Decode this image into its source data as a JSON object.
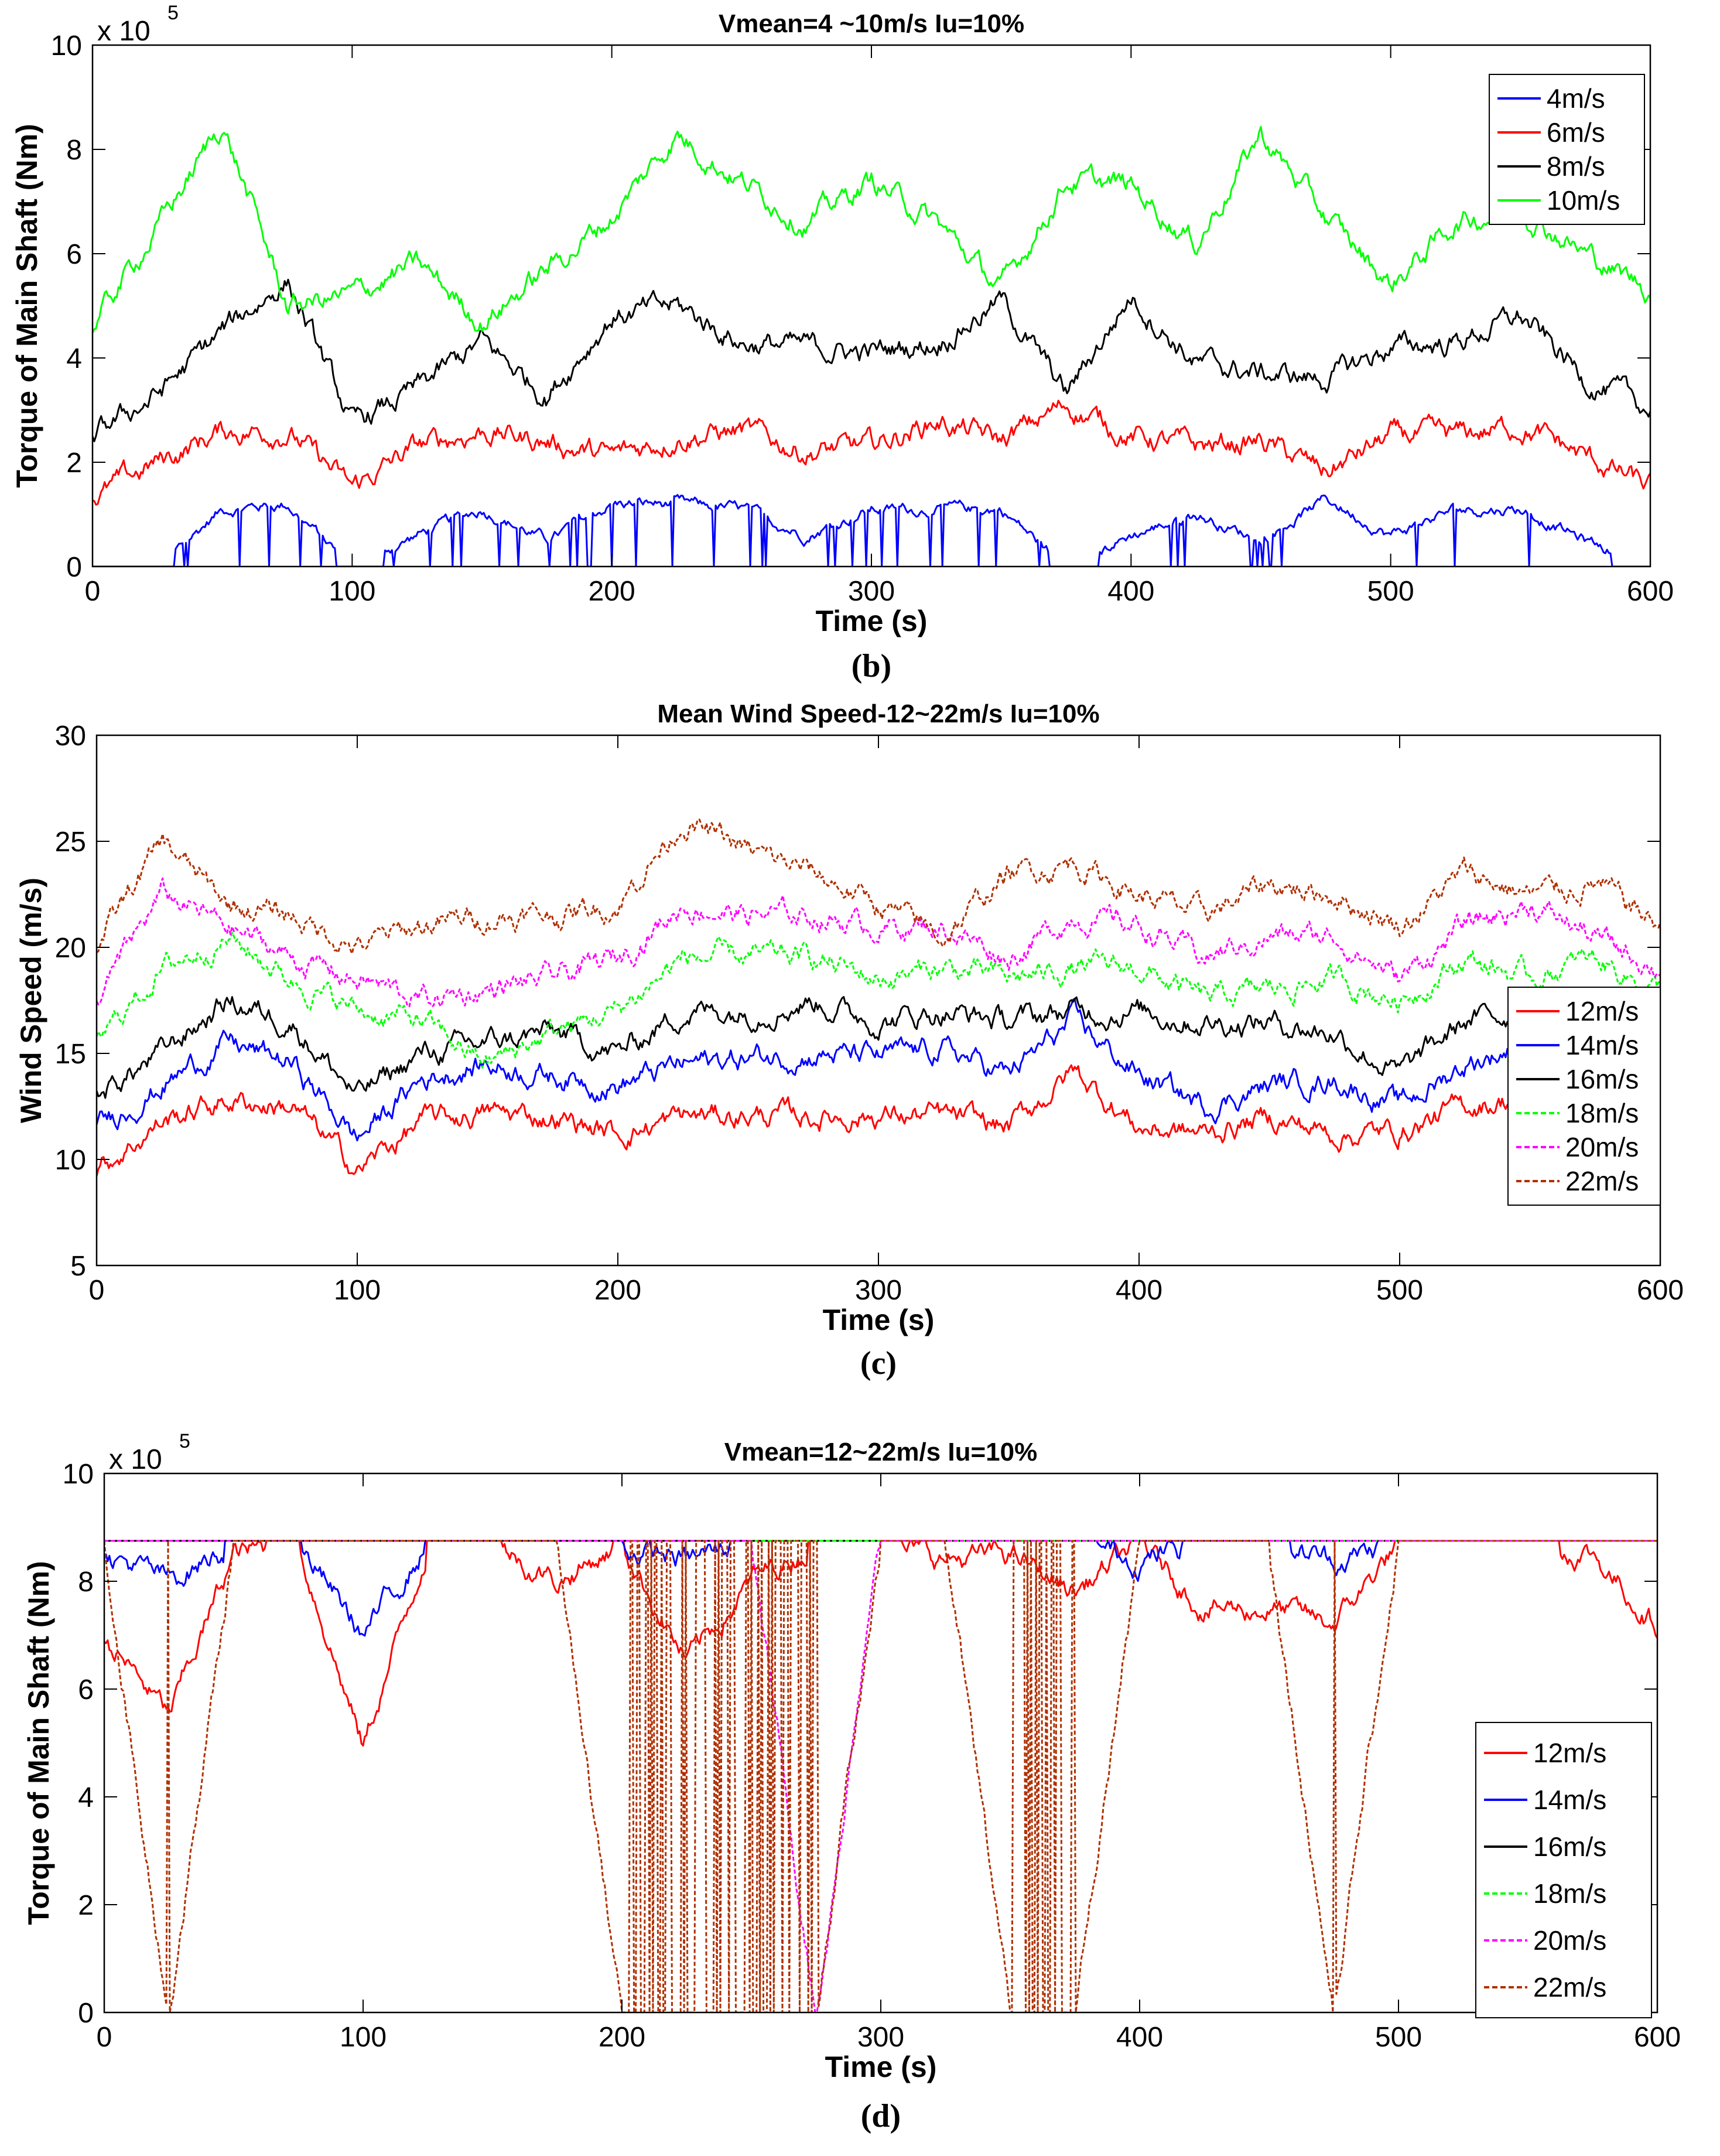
{
  "panels": [
    {
      "caption": "(b)",
      "title": "Vmean=4 ~10m/s  Iu=10%",
      "xlabel": "Time (s)",
      "ylabel": "Torque of Main Shaft (Nm)",
      "exponent_base": "x 10",
      "exponent_power": "5",
      "xlim": [
        0,
        600
      ],
      "ylim": [
        0,
        10
      ],
      "xticks": [
        "0",
        "100",
        "200",
        "300",
        "400",
        "500",
        "600"
      ],
      "yticks": [
        "0",
        "2",
        "4",
        "6",
        "8",
        "10"
      ],
      "legend_position": "top-right",
      "series": [
        {
          "name": "4m/s",
          "color": "#0000ff",
          "style": "solid"
        },
        {
          "name": "6m/s",
          "color": "#ff0000",
          "style": "solid"
        },
        {
          "name": "8m/s",
          "color": "#000000",
          "style": "solid"
        },
        {
          "name": "10m/s",
          "color": "#00ff00",
          "style": "solid"
        }
      ]
    },
    {
      "caption": "(c)",
      "title": "Mean Wind Speed-12~22m/s Iu=10%",
      "xlabel": "Time (s)",
      "ylabel": "Wind Speed (m/s)",
      "exponent_base": "",
      "exponent_power": "",
      "xlim": [
        0,
        600
      ],
      "ylim": [
        5,
        30
      ],
      "xticks": [
        "0",
        "100",
        "200",
        "300",
        "400",
        "500",
        "600"
      ],
      "yticks": [
        "5",
        "10",
        "15",
        "20",
        "25",
        "30"
      ],
      "legend_position": "right",
      "series": [
        {
          "name": "12m/s",
          "color": "#ff0000",
          "style": "solid"
        },
        {
          "name": "14m/s",
          "color": "#0000ff",
          "style": "solid"
        },
        {
          "name": "16m/s",
          "color": "#000000",
          "style": "solid"
        },
        {
          "name": "18m/s",
          "color": "#00ff00",
          "style": "dashed"
        },
        {
          "name": "20m/s",
          "color": "#ff00ff",
          "style": "dashed"
        },
        {
          "name": "22m/s",
          "color": "#b03000",
          "style": "dashed"
        }
      ]
    },
    {
      "caption": "(d)",
      "title": "Vmean=12~22m/s  Iu=10%",
      "xlabel": "Time (s)",
      "ylabel": "Torque of Main Shaft (Nm)",
      "exponent_base": "x 10",
      "exponent_power": "5",
      "xlim": [
        0,
        600
      ],
      "ylim": [
        0,
        10
      ],
      "xticks": [
        "0",
        "100",
        "200",
        "300",
        "400",
        "500",
        "600"
      ],
      "yticks": [
        "0",
        "2",
        "4",
        "6",
        "8",
        "10"
      ],
      "legend_position": "bottom-right",
      "series": [
        {
          "name": "12m/s",
          "color": "#ff0000",
          "style": "solid"
        },
        {
          "name": "14m/s",
          "color": "#0000ff",
          "style": "solid"
        },
        {
          "name": "16m/s",
          "color": "#000000",
          "style": "solid"
        },
        {
          "name": "18m/s",
          "color": "#00ff00",
          "style": "dashed"
        },
        {
          "name": "20m/s",
          "color": "#ff00ff",
          "style": "dashed"
        },
        {
          "name": "22m/s",
          "color": "#b03000",
          "style": "dashed"
        }
      ]
    }
  ],
  "chart_data": [
    {
      "type": "line",
      "title": "Vmean=4 ~10m/s  Iu=10%",
      "xlabel": "Time (s)",
      "ylabel": "Torque of Main Shaft (Nm)",
      "y_multiplier": 100000,
      "xlim": [
        0,
        600
      ],
      "ylim": [
        0,
        10
      ],
      "grid": false,
      "legend": "top-right",
      "x": [
        0,
        25,
        50,
        75,
        100,
        125,
        150,
        175,
        200,
        225,
        250,
        275,
        300,
        325,
        350,
        375,
        400,
        425,
        450,
        475,
        500,
        525,
        550,
        575,
        600
      ],
      "series": [
        {
          "name": "4m/s",
          "values": [
            0.0,
            0.0,
            1.1,
            1.2,
            0.0,
            0.6,
            1.1,
            0.5,
            1.2,
            1.2,
            1.1,
            0.6,
            1.1,
            1.1,
            1.1,
            0.0,
            0.6,
            1.0,
            0.5,
            1.3,
            0.6,
            1.1,
            1.1,
            0.5,
            0.0
          ]
        },
        {
          "name": "6m/s",
          "values": [
            1.3,
            2.0,
            2.6,
            2.6,
            1.5,
            2.3,
            2.6,
            2.4,
            2.1,
            2.5,
            2.6,
            2.2,
            2.3,
            2.8,
            2.4,
            3.1,
            2.5,
            2.3,
            2.4,
            1.8,
            2.5,
            2.5,
            2.7,
            2.1,
            1.5
          ]
        },
        {
          "name": "8m/s",
          "values": [
            2.5,
            3.3,
            4.5,
            5.5,
            2.7,
            3.4,
            4.3,
            3.3,
            4.8,
            5.0,
            4.3,
            4.2,
            4.1,
            4.3,
            5.1,
            3.3,
            5.2,
            3.9,
            3.7,
            3.6,
            4.2,
            4.3,
            4.8,
            3.6,
            3.0
          ]
        },
        {
          "name": "10m/s",
          "values": [
            4.6,
            6.5,
            8.5,
            5.0,
            5.2,
            5.8,
            4.7,
            5.7,
            6.7,
            8.3,
            7.4,
            6.6,
            7.4,
            6.6,
            5.3,
            7.4,
            7.3,
            6.2,
            8.3,
            6.7,
            5.4,
            6.6,
            6.9,
            6.0,
            5.3
          ]
        }
      ]
    },
    {
      "type": "line",
      "title": "Mean Wind Speed-12~22m/s Iu=10%",
      "xlabel": "Time (s)",
      "ylabel": "Wind Speed (m/s)",
      "xlim": [
        0,
        600
      ],
      "ylim": [
        5,
        30
      ],
      "grid": false,
      "legend": "right",
      "x": [
        0,
        25,
        50,
        75,
        100,
        125,
        150,
        175,
        200,
        225,
        250,
        275,
        300,
        325,
        350,
        375,
        400,
        425,
        450,
        475,
        500,
        525,
        550,
        575,
        600
      ],
      "series": [
        {
          "name": "12m/s",
          "values": [
            9.5,
            11.8,
            12.8,
            12.5,
            9.5,
            11.8,
            12.2,
            12.0,
            11.2,
            12.0,
            12.1,
            12.0,
            12.1,
            12.0,
            11.5,
            14.2,
            11.5,
            11.2,
            12.0,
            11.2,
            11.3,
            12.5,
            13.0,
            13.0,
            11.0
          ]
        },
        {
          "name": "14m/s",
          "values": [
            11.5,
            13.5,
            15.5,
            14.5,
            11.0,
            13.8,
            14.5,
            14.0,
            13.5,
            14.5,
            14.8,
            15.0,
            14.8,
            15.2,
            14.0,
            16.5,
            14.0,
            12.5,
            13.5,
            13.8,
            12.5,
            14.5,
            15.5,
            15.0,
            13.5
          ]
        },
        {
          "name": "16m/s",
          "values": [
            13.0,
            15.0,
            17.5,
            16.5,
            13.0,
            15.0,
            15.5,
            16.0,
            15.0,
            17.0,
            17.0,
            17.5,
            16.5,
            17.0,
            16.5,
            17.0,
            17.0,
            16.5,
            16.5,
            16.0,
            14.0,
            16.5,
            17.0,
            16.5,
            15.5
          ]
        },
        {
          "name": "18m/s",
          "values": [
            15.5,
            19.0,
            20.5,
            18.5,
            17.0,
            16.5,
            14.5,
            16.0,
            17.0,
            19.5,
            19.5,
            19.5,
            18.5,
            19.0,
            18.5,
            19.0,
            19.0,
            17.5,
            18.0,
            18.5,
            17.5,
            19.5,
            18.5,
            19.5,
            18.0
          ]
        },
        {
          "name": "20m/s",
          "values": [
            17.5,
            22.5,
            21.0,
            19.5,
            18.5,
            17.5,
            18.0,
            18.5,
            19.5,
            22.0,
            21.5,
            21.5,
            21.0,
            21.0,
            19.5,
            21.5,
            21.0,
            19.5,
            20.5,
            20.5,
            18.5,
            21.0,
            22.0,
            20.5,
            19.0
          ]
        },
        {
          "name": "22m/s",
          "values": [
            20.0,
            25.0,
            22.0,
            21.5,
            20.0,
            21.0,
            21.5,
            21.5,
            22.0,
            26.0,
            24.5,
            23.5,
            22.0,
            20.5,
            23.5,
            24.0,
            22.5,
            21.5,
            23.0,
            22.5,
            21.0,
            23.5,
            22.5,
            23.0,
            21.0
          ]
        }
      ]
    },
    {
      "type": "line",
      "title": "Vmean=12~22m/s  Iu=10%",
      "xlabel": "Time (s)",
      "ylabel": "Torque of Main Shaft (Nm)",
      "y_multiplier": 100000,
      "xlim": [
        0,
        600
      ],
      "ylim": [
        0,
        10
      ],
      "grid": false,
      "legend": "bottom-right",
      "x": [
        0,
        25,
        50,
        75,
        100,
        125,
        150,
        175,
        200,
        225,
        250,
        275,
        300,
        325,
        350,
        375,
        400,
        425,
        450,
        475,
        500,
        525,
        550,
        575,
        600
      ],
      "series": [
        {
          "name": "12m/s",
          "values": [
            7.0,
            5.5,
            8.5,
            8.7,
            4.9,
            8.7,
            8.7,
            8.0,
            8.7,
            6.5,
            8.0,
            8.7,
            8.7,
            8.4,
            8.5,
            7.8,
            8.7,
            7.5,
            7.5,
            7.2,
            8.7,
            8.7,
            8.7,
            8.5,
            7.2
          ]
        },
        {
          "name": "14m/s",
          "values": [
            8.5,
            8.0,
            8.7,
            8.7,
            7.0,
            8.7,
            8.7,
            8.7,
            8.6,
            8.4,
            8.7,
            8.7,
            8.7,
            8.7,
            8.7,
            8.7,
            8.4,
            8.7,
            8.7,
            8.4,
            8.7,
            8.7,
            8.7,
            8.7,
            8.7
          ]
        },
        {
          "name": "16m/s",
          "values": [
            8.7,
            8.7,
            8.7,
            8.7,
            8.7,
            8.7,
            8.7,
            8.7,
            8.7,
            8.7,
            8.7,
            8.7,
            8.7,
            8.7,
            8.7,
            8.7,
            8.7,
            8.7,
            8.7,
            8.7,
            8.7,
            8.7,
            8.7,
            8.7,
            8.7
          ]
        },
        {
          "name": "18m/s",
          "values": [
            8.7,
            8.7,
            8.7,
            8.7,
            8.7,
            8.7,
            8.7,
            8.7,
            8.7,
            8.7,
            8.7,
            8.7,
            8.7,
            8.7,
            8.7,
            8.7,
            8.7,
            8.7,
            8.7,
            8.7,
            8.7,
            8.7,
            8.7,
            8.7,
            8.7
          ]
        },
        {
          "name": "20m/s",
          "values": [
            8.7,
            8.7,
            8.7,
            8.7,
            8.7,
            8.7,
            8.7,
            8.7,
            8.7,
            8.7,
            8.7,
            0.0,
            8.7,
            8.7,
            8.7,
            8.7,
            8.7,
            8.7,
            8.7,
            8.7,
            8.7,
            8.7,
            8.7,
            8.7,
            8.7
          ]
        },
        {
          "name": "22m/s",
          "values": [
            8.7,
            0.0,
            8.7,
            8.7,
            8.7,
            8.7,
            8.7,
            8.7,
            0.0,
            0.0,
            0.0,
            0.0,
            8.7,
            8.7,
            0.0,
            0.0,
            8.7,
            8.7,
            8.7,
            0.0,
            8.7,
            8.7,
            8.7,
            8.7,
            8.7
          ]
        }
      ]
    }
  ]
}
